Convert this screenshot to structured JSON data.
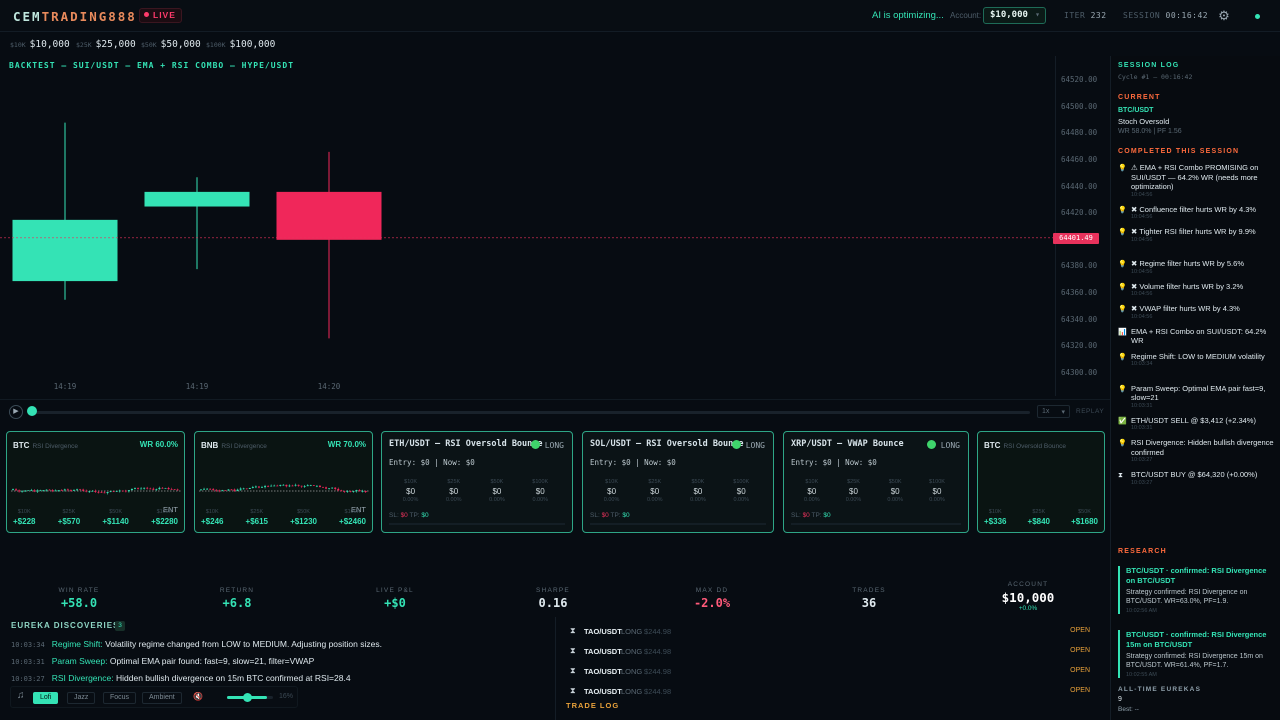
{
  "header": {
    "logo_prefix": "CEM",
    "logo_highlight": "TRADING888",
    "live_label": "LIVE",
    "ai_status": "AI is optimizing...",
    "account_label": "Account:",
    "account_value": "$10,000",
    "iter_label": "ITER",
    "iter_value": "232",
    "session_label": "SESSION",
    "session_value": "00:16:42",
    "accent_color": "#34e3b5",
    "alert_color": "#e8325c"
  },
  "balances": [
    {
      "tag": "$10K",
      "value": "$10,000"
    },
    {
      "tag": "$25K",
      "value": "$25,000"
    },
    {
      "tag": "$50K",
      "value": "$50,000"
    },
    {
      "tag": "$100K",
      "value": "$100,000"
    }
  ],
  "chart": {
    "title": "BACKTEST — SUI/USDT — EMA + RSI COMBO — HYPE/USDT",
    "current_price": "64401.49",
    "y_ticks": [
      "64520.00",
      "64500.00",
      "64480.00",
      "64460.00",
      "64440.00",
      "64420.00",
      "64400.00",
      "64380.00",
      "64360.00",
      "64340.00",
      "64320.00",
      "64300.00"
    ],
    "x_ticks": [
      "14:19",
      "14:19",
      "14:20"
    ]
  },
  "chart_data": {
    "type": "candlestick",
    "x": [
      "14:19",
      "14:19",
      "14:20"
    ],
    "ohlc": [
      {
        "open": 64369,
        "high": 64488,
        "low": 64355,
        "close": 64415
      },
      {
        "open": 64425,
        "high": 64447,
        "low": 64378,
        "close": 64436
      },
      {
        "open": 64436,
        "high": 64466,
        "low": 64326,
        "close": 64400
      }
    ],
    "ylim": [
      64300,
      64520
    ],
    "reference_line": 64401.49,
    "grid": true
  },
  "replay": {
    "speed": "1x",
    "label": "REPLAY",
    "progress": 0.0
  },
  "strategy_cards": [
    {
      "pair": "BTC",
      "strategy": "RSI Divergence",
      "wr": "WR 60.0%",
      "ent": "ENT",
      "pnl": [
        {
          "tag": "$10K",
          "v": "+$228"
        },
        {
          "tag": "$25K",
          "v": "+$570"
        },
        {
          "tag": "$50K",
          "v": "+$1140"
        },
        {
          "tag": "$100K",
          "v": "+$2280"
        }
      ]
    },
    {
      "pair": "BNB",
      "strategy": "RSI Divergence",
      "wr": "WR 70.0%",
      "ent": "ENT",
      "pnl": [
        {
          "tag": "$10K",
          "v": "+$246"
        },
        {
          "tag": "$25K",
          "v": "+$615"
        },
        {
          "tag": "$50K",
          "v": "+$1230"
        },
        {
          "tag": "$100K",
          "v": "+$2460"
        }
      ]
    },
    {
      "pair": "BTC",
      "strategy": "RSI Oversold Bounce",
      "wr": "",
      "ent": "",
      "pnl": [
        {
          "tag": "$10K",
          "v": "+$336"
        },
        {
          "tag": "$25K",
          "v": "+$840"
        },
        {
          "tag": "$50K",
          "v": "+$1680"
        }
      ]
    }
  ],
  "bot_cards": [
    {
      "title": "ETH/USDT — RSI Oversold Bounce",
      "dir": "LONG",
      "entry": "Entry: $0 | Now: $0",
      "cols": [
        {
          "tag": "$10K",
          "v": "$0",
          "pct": "0.00%"
        },
        {
          "tag": "$25K",
          "v": "$0",
          "pct": "0.00%"
        },
        {
          "tag": "$50K",
          "v": "$0",
          "pct": "0.00%"
        },
        {
          "tag": "$100K",
          "v": "$0",
          "pct": "0.00%"
        }
      ],
      "sl": "$0",
      "tp": "$0"
    },
    {
      "title": "SOL/USDT — RSI Oversold Bounce",
      "dir": "LONG",
      "entry": "Entry: $0 | Now: $0",
      "cols": [
        {
          "tag": "$10K",
          "v": "$0",
          "pct": "0.00%"
        },
        {
          "tag": "$25K",
          "v": "$0",
          "pct": "0.00%"
        },
        {
          "tag": "$50K",
          "v": "$0",
          "pct": "0.00%"
        },
        {
          "tag": "$100K",
          "v": "$0",
          "pct": "0.00%"
        }
      ],
      "sl": "$0",
      "tp": "$0"
    },
    {
      "title": "XRP/USDT — VWAP Bounce",
      "dir": "LONG",
      "entry": "Entry: $0 | Now: $0",
      "cols": [
        {
          "tag": "$10K",
          "v": "$0",
          "pct": "0.00%"
        },
        {
          "tag": "$25K",
          "v": "$0",
          "pct": "0.00%"
        },
        {
          "tag": "$50K",
          "v": "$0",
          "pct": "0.00%"
        },
        {
          "tag": "$100K",
          "v": "$0",
          "pct": "0.00%"
        }
      ],
      "sl": "$0",
      "tp": "$0"
    }
  ],
  "stats": [
    {
      "label": "WIN RATE",
      "value": "+58.0"
    },
    {
      "label": "RETURN",
      "value": "+6.8"
    },
    {
      "label": "LIVE P&L",
      "value": "+$0"
    },
    {
      "label": "SHARPE",
      "value": "0.16"
    },
    {
      "label": "MAX DD",
      "value": "-2.0%"
    },
    {
      "label": "TRADES",
      "value": "36"
    },
    {
      "label": "ACCOUNT",
      "value": "$10,000",
      "sub": "+0.0%"
    }
  ],
  "eureka": {
    "title": "EUREKA DISCOVERIES",
    "count": "3",
    "items": [
      {
        "time": "10:03:34",
        "key": "Regime Shift:",
        "text": "Volatility regime changed from LOW to MEDIUM. Adjusting position sizes."
      },
      {
        "time": "10:03:31",
        "key": "Param Sweep:",
        "text": "Optimal EMA pair found: fast=9, slow=21, filter=VWAP"
      },
      {
        "time": "10:03:27",
        "key": "RSI Divergence:",
        "text": "Hidden bullish divergence on 15m BTC confirmed at RSI=28.4"
      }
    ]
  },
  "music": {
    "modes": [
      "Lofi",
      "Jazz",
      "Focus",
      "Ambient"
    ],
    "active": "Lofi",
    "volume": "16%"
  },
  "trade_log": {
    "label": "TRADE LOG",
    "rows": [
      {
        "pair": "TAO/USDT",
        "dir": "LONG",
        "price": "$244.98",
        "status": "OPEN"
      },
      {
        "pair": "TAO/USDT",
        "dir": "LONG",
        "price": "$244.98",
        "status": "OPEN"
      },
      {
        "pair": "TAO/USDT",
        "dir": "LONG",
        "price": "$244.98",
        "status": "OPEN"
      },
      {
        "pair": "TAO/USDT",
        "dir": "LONG",
        "price": "$244.98",
        "status": "OPEN"
      }
    ]
  },
  "sidebar": {
    "title": "SESSION LOG",
    "cycle": "Cycle #1 — 00:16:42",
    "current_label": "CURRENT",
    "current_pair": "BTC/USDT",
    "current_strategy": "Stoch Oversold",
    "current_stats": "WR 58.0% | PF 1.56",
    "completed_label": "COMPLETED THIS SESSION",
    "log": [
      {
        "icon": "bulb",
        "text": "⚠ EMA + RSI Combo PROMISING on SUI/USDT — 64.2% WR (needs more optimization)",
        "time": "10:04:56"
      },
      {
        "icon": "bulb",
        "text": "✖ Confluence filter hurts WR by 4.3%",
        "time": "10:04:56"
      },
      {
        "icon": "bulb",
        "text": "✖ Tighter RSI filter hurts WR by 9.9%",
        "time": "10:04:56"
      },
      {
        "icon": "bulb",
        "text": "✖ Regime filter hurts WR by 5.6%",
        "time": "10:04:56"
      },
      {
        "icon": "bulb",
        "text": "✖ Volume filter hurts WR by 3.2%",
        "time": "10:04:56"
      },
      {
        "icon": "bulb",
        "text": "✖ VWAP filter hurts WR by 4.3%",
        "time": "10:04:56"
      },
      {
        "icon": "chart",
        "text": "EMA + RSI Combo on SUI/USDT: 64.2% WR",
        "time": ""
      },
      {
        "icon": "bulb",
        "text": "Regime Shift: LOW to MEDIUM volatility",
        "time": "10:03:34"
      },
      {
        "icon": "bulb",
        "text": "Param Sweep: Optimal EMA pair fast=9, slow=21",
        "time": "10:03:31"
      },
      {
        "icon": "check",
        "text": "ETH/USDT SELL @ $3,412 (+2.34%)",
        "time": "10:03:31"
      },
      {
        "icon": "bulb",
        "text": "RSI Divergence: Hidden bullish divergence confirmed",
        "time": "10:03:27"
      },
      {
        "icon": "hourglass",
        "text": "BTC/USDT BUY @ $64,320 (+0.00%)",
        "time": "10:03:27"
      }
    ],
    "research_label": "RESEARCH",
    "research": [
      {
        "title": "BTC/USDT · confirmed: RSI Divergence on BTC/USDT",
        "body": "Strategy confirmed: RSI Divergence on BTC/USDT. WR=63.0%, PF=1.9.",
        "time": "10:02:56 AM"
      },
      {
        "title": "BTC/USDT · confirmed: RSI Divergence 15m on BTC/USDT",
        "body": "Strategy confirmed: RSI Divergence 15m on BTC/USDT. WR=61.4%, PF=1.7.",
        "time": "10:02:55 AM"
      }
    ],
    "alltime_label": "ALL-TIME EUREKAS",
    "alltime_count": "9",
    "best": "Best: --"
  }
}
